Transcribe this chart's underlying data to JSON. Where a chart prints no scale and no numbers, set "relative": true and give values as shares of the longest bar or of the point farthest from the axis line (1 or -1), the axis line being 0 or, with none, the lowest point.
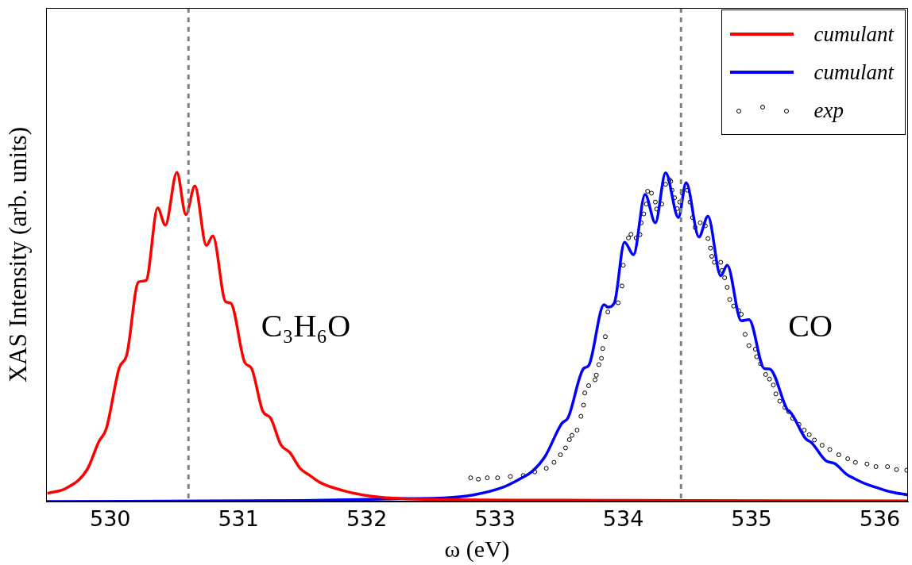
{
  "chart_data": {
    "type": "line",
    "relative": true,
    "xlabel": "ω (eV)",
    "ylabel": "XAS Intensity (arb. units)",
    "xlim": [
      529.5,
      536.22
    ],
    "xticks": [
      530,
      531,
      532,
      533,
      534,
      535,
      536
    ],
    "grid": false,
    "legend": "top right",
    "line_style": "solid",
    "tick_labels": "x",
    "ref_lines": [
      {
        "axis": "x",
        "value": 530.61,
        "color": "#808080",
        "line_style": "dashed"
      },
      {
        "axis": "x",
        "value": 534.45,
        "color": "#808080",
        "line_style": "dashed"
      }
    ],
    "annotations": [
      "C₃H₆O",
      "CO"
    ],
    "series": [
      {
        "name": "cumulant",
        "color": "#ff0000",
        "x": [
          529.51,
          529.66,
          529.82,
          529.91,
          529.97,
          530.07,
          530.13,
          530.22,
          530.28,
          530.37,
          530.43,
          530.52,
          530.59,
          530.66,
          530.75,
          530.8,
          530.9,
          530.94,
          531.05,
          531.1,
          531.19,
          531.25,
          531.33,
          531.4,
          531.48,
          531.55,
          531.64,
          531.82,
          532.02,
          532.21,
          532.6,
          533.5,
          534.5,
          536.22
        ],
        "values": [
          0.025,
          0.041,
          0.097,
          0.181,
          0.222,
          0.406,
          0.447,
          0.667,
          0.672,
          0.892,
          0.84,
          1,
          0.872,
          0.959,
          0.778,
          0.807,
          0.607,
          0.603,
          0.422,
          0.406,
          0.274,
          0.254,
          0.173,
          0.149,
          0.101,
          0.081,
          0.057,
          0.033,
          0.017,
          0.01,
          0.006,
          0.004,
          0.003,
          0.002
        ]
      },
      {
        "name": "cumulant",
        "color": "#0000ff",
        "x": [
          529.5,
          531.5,
          532.3,
          532.6,
          532.83,
          533.06,
          533.2,
          533.29,
          533.39,
          533.52,
          533.57,
          533.69,
          533.73,
          533.85,
          533.88,
          533.93,
          534.01,
          534.08,
          534.17,
          534.25,
          534.33,
          534.43,
          534.49,
          534.59,
          534.66,
          534.76,
          534.81,
          534.92,
          534.98,
          535.1,
          535.14,
          535.28,
          535.31,
          535.42,
          535.47,
          535.58,
          535.65,
          535.74,
          535.8,
          535.9,
          535.97,
          536.09,
          536.22
        ],
        "values": [
          0,
          0.003,
          0.009,
          0.011,
          0.02,
          0.043,
          0.07,
          0.092,
          0.137,
          0.237,
          0.255,
          0.404,
          0.413,
          0.598,
          0.591,
          0.603,
          0.788,
          0.75,
          0.933,
          0.847,
          0.999,
          0.863,
          0.969,
          0.804,
          0.867,
          0.686,
          0.718,
          0.549,
          0.553,
          0.404,
          0.403,
          0.278,
          0.268,
          0.192,
          0.178,
          0.124,
          0.115,
          0.083,
          0.07,
          0.052,
          0.043,
          0.029,
          0.02
        ]
      },
      {
        "name": "exp",
        "type": "scatter",
        "marker": "circle",
        "color": "#000000",
        "x": [
          532.81,
          532.87,
          532.94,
          533.02,
          533.12,
          533.22,
          533.31,
          533.4,
          533.46,
          533.51,
          533.55,
          533.58,
          533.6,
          533.64,
          533.67,
          533.69,
          533.7,
          533.73,
          533.78,
          533.79,
          533.81,
          533.83,
          533.84,
          533.86,
          533.88,
          533.96,
          533.99,
          534,
          534.04,
          534.06,
          534.1,
          534.13,
          534.14,
          534.16,
          534.18,
          534.19,
          534.22,
          534.25,
          534.26,
          534.3,
          534.33,
          534.36,
          534.37,
          534.38,
          534.4,
          534.42,
          534.44,
          534.46,
          534.5,
          534.52,
          534.54,
          534.56,
          534.6,
          534.64,
          534.66,
          534.68,
          534.69,
          534.71,
          534.76,
          534.77,
          534.79,
          534.81,
          534.83,
          534.86,
          534.9,
          534.92,
          534.95,
          534.98,
          535.03,
          535.04,
          535.07,
          535.11,
          535.14,
          535.17,
          535.19,
          535.22,
          535.26,
          535.29,
          535.32,
          535.37,
          535.41,
          535.45,
          535.49,
          535.55,
          535.61,
          535.68,
          535.75,
          535.81,
          535.9,
          535.97,
          536.06,
          536.13,
          536.21
        ],
        "values": [
          0.072,
          0.068,
          0.072,
          0.072,
          0.076,
          0.079,
          0.09,
          0.101,
          0.119,
          0.142,
          0.163,
          0.188,
          0.201,
          0.217,
          0.259,
          0.293,
          0.33,
          0.352,
          0.37,
          0.384,
          0.416,
          0.435,
          0.465,
          0.501,
          0.576,
          0.604,
          0.655,
          0.718,
          0.801,
          0.812,
          0.801,
          0.811,
          0.847,
          0.874,
          0.904,
          0.943,
          0.937,
          0.91,
          0.889,
          0.904,
          0.964,
          0.978,
          0.973,
          0.946,
          0.923,
          0.89,
          0.91,
          0.937,
          0.946,
          0.91,
          0.863,
          0.833,
          0.847,
          0.838,
          0.799,
          0.77,
          0.745,
          0.727,
          0.727,
          0.702,
          0.68,
          0.651,
          0.614,
          0.594,
          0.58,
          0.569,
          0.508,
          0.474,
          0.463,
          0.44,
          0.419,
          0.386,
          0.372,
          0.354,
          0.327,
          0.305,
          0.286,
          0.273,
          0.253,
          0.234,
          0.217,
          0.203,
          0.187,
          0.171,
          0.158,
          0.142,
          0.13,
          0.119,
          0.114,
          0.106,
          0.106,
          0.097,
          0.095
        ]
      }
    ]
  }
}
